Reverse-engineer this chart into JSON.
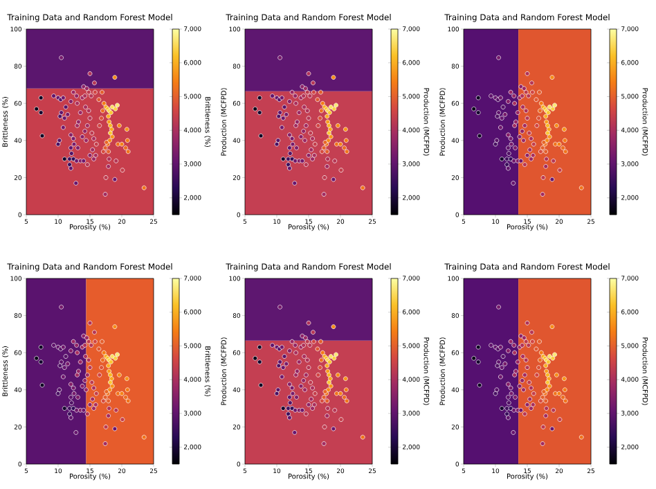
{
  "chart_data": [
    {
      "type": "scatter",
      "title": "Training Data and Random Forest Model",
      "xlabel": "Porosity (%)",
      "ylabel": "Brittleness (%)",
      "clabel": "Brittleness (%)",
      "marker": "circle",
      "xlim": [
        5,
        25
      ],
      "ylim": [
        0,
        100
      ],
      "xticks": [
        5,
        10,
        15,
        20,
        25
      ],
      "yticks": [
        0,
        20,
        40,
        60,
        80,
        100
      ],
      "clim": [
        1500,
        7000
      ],
      "cticks": [
        {
          "value": 2000,
          "label": "2,000"
        },
        {
          "value": 3000,
          "label": "3,000"
        },
        {
          "value": 4000,
          "label": "4,000"
        },
        {
          "value": 5000,
          "label": "5,000"
        },
        {
          "value": 6000,
          "label": "6,000"
        },
        {
          "value": 7000,
          "label": "7,000"
        }
      ],
      "bands": [
        {
          "axis": "y",
          "from": 0,
          "to": 68,
          "color": "#c73e4c"
        },
        {
          "axis": "y",
          "from": 68,
          "to": 100,
          "color": "#5b166e"
        }
      ],
      "x": [
        10.5,
        15.0,
        18.9,
        15.7,
        14.0,
        14.5,
        6.6,
        7.3,
        7.3,
        7.5,
        9.3,
        10.0,
        10.4,
        10.8,
        10.5,
        10.3,
        11.0,
        11.5,
        11.2,
        10.8,
        10.2,
        10.0,
        11.0,
        12.0,
        12.1,
        11.8,
        11.8,
        12.0,
        12.4,
        12.9,
        12.8,
        12.5,
        13.1,
        13.5,
        14.0,
        12.0,
        12.4,
        13.0,
        13.2,
        13.5,
        12.0,
        12.4,
        12.9,
        13.0,
        13.8,
        14.2,
        14.8,
        15.2,
        14.3,
        14.8,
        15.0,
        14.6,
        14.2,
        13.8,
        14.4,
        15.3,
        15.6,
        16.0,
        15.4,
        15.0,
        15.6,
        15.9,
        14.6,
        16.5,
        16.8,
        17.0,
        17.2,
        17.5,
        17.8,
        18.0,
        18.3,
        18.5,
        19.0,
        19.3,
        17.9,
        18.0,
        18.2,
        18.4,
        18.2,
        18.5,
        18.1,
        17.8,
        17.4,
        17.1,
        17.6,
        16.4,
        16.9,
        15.8,
        19.6,
        19.4,
        20.0,
        20.8,
        20.9,
        21.0,
        20.6,
        20.1,
        19.1,
        18.0,
        17.9,
        17.5,
        18.9,
        17.4,
        23.5,
        17.9
      ],
      "values": [
        84.6,
        76,
        74,
        71,
        69,
        68,
        57,
        63,
        55,
        42.5,
        64,
        63,
        62,
        63,
        55,
        53,
        52,
        54,
        58,
        47,
        40,
        38,
        30,
        36,
        33,
        30,
        27,
        25,
        30,
        29,
        17,
        38,
        36,
        29,
        29,
        43,
        41,
        48,
        50,
        55,
        61,
        66,
        64,
        60,
        63,
        64,
        66,
        64,
        58,
        56,
        52,
        48,
        45,
        42,
        40,
        44,
        41,
        38,
        35,
        32,
        30,
        32,
        27,
        48,
        52,
        56,
        60,
        58,
        57,
        56,
        55,
        58,
        57,
        59,
        53,
        50,
        48,
        46,
        44,
        42,
        40,
        38,
        36,
        34,
        39,
        62,
        66,
        66,
        48,
        38,
        38,
        46,
        40,
        34,
        36,
        24,
        29,
        30,
        26,
        20,
        19,
        11,
        14.5,
        34
      ],
      "cvalues": [
        3300,
        4100,
        5600,
        4200,
        3600,
        3800,
        1700,
        1800,
        1900,
        1800,
        3000,
        3100,
        2900,
        3200,
        3000,
        2800,
        3100,
        3300,
        2900,
        3200,
        2900,
        2700,
        1900,
        3000,
        2800,
        2600,
        2500,
        3000,
        2400,
        3200,
        3100,
        3300,
        3400,
        3500,
        3200,
        3500,
        3300,
        3900,
        3700,
        3800,
        3500,
        3800,
        3700,
        4000,
        3900,
        4100,
        4300,
        4200,
        4000,
        4100,
        4200,
        3900,
        3700,
        3500,
        3800,
        4300,
        4000,
        4400,
        3900,
        3600,
        3800,
        4000,
        4200,
        4600,
        4800,
        5200,
        5400,
        6000,
        6200,
        6500,
        6300,
        6600,
        6400,
        6700,
        6000,
        5800,
        6100,
        5900,
        6300,
        5700,
        5600,
        5300,
        5000,
        4700,
        5100,
        4900,
        5000,
        4600,
        5600,
        5300,
        5500,
        5700,
        5400,
        5300,
        5200,
        4400,
        4200,
        4100,
        3900,
        4300,
        3100,
        3900,
        5300,
        5000
      ]
    },
    {
      "type": "scatter",
      "title": "Training Data and Random Forest Model",
      "xlabel": "Porosity (%)",
      "ylabel": "Production (MCFPD)",
      "clabel": "Production (MCFPD)",
      "marker": "circle",
      "xlim": [
        5,
        25
      ],
      "ylim": [
        0,
        100
      ],
      "xticks": [
        5,
        10,
        15,
        20,
        25
      ],
      "yticks": [
        0,
        20,
        40,
        60,
        80,
        100
      ],
      "clim": [
        1500,
        7000
      ],
      "cticks": [
        {
          "value": 2000,
          "label": "2,000"
        },
        {
          "value": 3000,
          "label": "3,000"
        },
        {
          "value": 4000,
          "label": "4,000"
        },
        {
          "value": 5000,
          "label": "5,000"
        },
        {
          "value": 6000,
          "label": "6,000"
        },
        {
          "value": 7000,
          "label": "7,000"
        }
      ],
      "bands": [
        {
          "axis": "y",
          "from": 0,
          "to": 66.5,
          "color": "#c43f52"
        },
        {
          "axis": "y",
          "from": 66.5,
          "to": 100,
          "color": "#5e1770"
        }
      ],
      "x": [
        10.5,
        15.0,
        18.9,
        15.7,
        14.0,
        14.5,
        6.6,
        7.3,
        7.3,
        7.5,
        9.3,
        10.0,
        10.4,
        10.8,
        10.5,
        10.3,
        11.0,
        11.5,
        11.2,
        10.8,
        10.2,
        10.0,
        11.0,
        12.0,
        12.1,
        11.8,
        11.8,
        12.0,
        12.4,
        12.9,
        12.8,
        12.5,
        13.1,
        13.5,
        14.0,
        12.0,
        12.4,
        13.0,
        13.2,
        13.5,
        12.0,
        12.4,
        12.9,
        13.0,
        13.8,
        14.2,
        14.8,
        15.2,
        14.3,
        14.8,
        15.0,
        14.6,
        14.2,
        13.8,
        14.4,
        15.3,
        15.6,
        16.0,
        15.4,
        15.0,
        15.6,
        15.9,
        14.6,
        16.5,
        16.8,
        17.0,
        17.2,
        17.5,
        17.8,
        18.0,
        18.3,
        18.5,
        19.0,
        19.3,
        17.9,
        18.0,
        18.2,
        18.4,
        18.2,
        18.5,
        18.1,
        17.8,
        17.4,
        17.1,
        17.6,
        16.4,
        16.9,
        15.8,
        19.6,
        19.4,
        20.0,
        20.8,
        20.9,
        21.0,
        20.6,
        20.1,
        19.1,
        18.0,
        17.9,
        17.5,
        18.9,
        17.4,
        23.5,
        17.9
      ],
      "values": [
        84.6,
        76,
        74,
        71,
        69,
        68,
        57,
        63,
        55,
        42.5,
        64,
        63,
        62,
        63,
        55,
        53,
        52,
        54,
        58,
        47,
        40,
        38,
        30,
        36,
        33,
        30,
        27,
        25,
        30,
        29,
        17,
        38,
        36,
        29,
        29,
        43,
        41,
        48,
        50,
        55,
        61,
        66,
        64,
        60,
        63,
        64,
        66,
        64,
        58,
        56,
        52,
        48,
        45,
        42,
        40,
        44,
        41,
        38,
        35,
        32,
        30,
        32,
        27,
        48,
        52,
        56,
        60,
        58,
        57,
        56,
        55,
        58,
        57,
        59,
        53,
        50,
        48,
        46,
        44,
        42,
        40,
        38,
        36,
        34,
        39,
        62,
        66,
        66,
        48,
        38,
        38,
        46,
        40,
        34,
        36,
        24,
        29,
        30,
        26,
        20,
        19,
        11,
        14.5,
        34
      ],
      "cvalues": [
        3300,
        4100,
        5600,
        4200,
        3600,
        3800,
        1700,
        1800,
        1900,
        1800,
        3000,
        3100,
        2900,
        3200,
        3000,
        2800,
        3100,
        3300,
        2900,
        3200,
        2900,
        2700,
        1900,
        3000,
        2800,
        2600,
        2500,
        3000,
        2400,
        3200,
        3100,
        3300,
        3400,
        3500,
        3200,
        3500,
        3300,
        3900,
        3700,
        3800,
        3500,
        3800,
        3700,
        4000,
        3900,
        4100,
        4300,
        4200,
        4000,
        4100,
        4200,
        3900,
        3700,
        3500,
        3800,
        4300,
        4000,
        4400,
        3900,
        3600,
        3800,
        4000,
        4200,
        4600,
        4800,
        5200,
        5400,
        6000,
        6200,
        6500,
        6300,
        6600,
        6400,
        6700,
        6000,
        5800,
        6100,
        5900,
        6300,
        5700,
        5600,
        5300,
        5000,
        4700,
        5100,
        4900,
        5000,
        4600,
        5600,
        5300,
        5500,
        5700,
        5400,
        5300,
        5200,
        4400,
        4200,
        4100,
        3900,
        4300,
        3100,
        3900,
        5300,
        5000
      ]
    },
    {
      "type": "scatter",
      "title": "Training Data and Random Forest Model",
      "xlabel": "Porosity (%)",
      "ylabel": "Production (MCFPD)",
      "clabel": "Production (MCFPD)",
      "marker": "circle",
      "xlim": [
        5,
        25
      ],
      "ylim": [
        0,
        100
      ],
      "xticks": [
        5,
        10,
        15,
        20,
        25
      ],
      "yticks": [
        0,
        20,
        40,
        60,
        80,
        100
      ],
      "clim": [
        1500,
        7000
      ],
      "cticks": [
        {
          "value": 2000,
          "label": "2,000"
        },
        {
          "value": 3000,
          "label": "3,000"
        },
        {
          "value": 4000,
          "label": "4,000"
        },
        {
          "value": 5000,
          "label": "5,000"
        },
        {
          "value": 6000,
          "label": "6,000"
        },
        {
          "value": 7000,
          "label": "7,000"
        }
      ],
      "bands": [
        {
          "axis": "x",
          "from": 5,
          "to": 13.6,
          "color": "#551070"
        },
        {
          "axis": "x",
          "from": 13.6,
          "to": 25,
          "color": "#e0562f"
        }
      ],
      "x": [
        10.5,
        15.0,
        18.9,
        15.7,
        14.0,
        14.5,
        6.6,
        7.3,
        7.3,
        7.5,
        9.3,
        10.0,
        10.4,
        10.8,
        10.5,
        10.3,
        11.0,
        11.5,
        11.2,
        10.8,
        10.2,
        10.0,
        11.0,
        12.0,
        12.1,
        11.8,
        11.8,
        12.0,
        12.4,
        12.9,
        12.8,
        12.5,
        13.1,
        13.5,
        14.0,
        12.0,
        12.4,
        13.0,
        13.2,
        13.5,
        12.0,
        12.4,
        12.9,
        13.0,
        13.8,
        14.2,
        14.8,
        15.2,
        14.3,
        14.8,
        15.0,
        14.6,
        14.2,
        13.8,
        14.4,
        15.3,
        15.6,
        16.0,
        15.4,
        15.0,
        15.6,
        15.9,
        14.6,
        16.5,
        16.8,
        17.0,
        17.2,
        17.5,
        17.8,
        18.0,
        18.3,
        18.5,
        19.0,
        19.3,
        17.9,
        18.0,
        18.2,
        18.4,
        18.2,
        18.5,
        18.1,
        17.8,
        17.4,
        17.1,
        17.6,
        16.4,
        16.9,
        15.8,
        19.6,
        19.4,
        20.0,
        20.8,
        20.9,
        21.0,
        20.6,
        20.1,
        19.1,
        18.0,
        17.9,
        17.5,
        18.9,
        17.4,
        23.5,
        17.9
      ],
      "values": [
        84.6,
        76,
        74,
        71,
        69,
        68,
        57,
        63,
        55,
        42.5,
        64,
        63,
        62,
        63,
        55,
        53,
        52,
        54,
        58,
        47,
        40,
        38,
        30,
        36,
        33,
        30,
        27,
        25,
        30,
        29,
        17,
        38,
        36,
        29,
        29,
        43,
        41,
        48,
        50,
        55,
        61,
        66,
        64,
        60,
        63,
        64,
        66,
        64,
        58,
        56,
        52,
        48,
        45,
        42,
        40,
        44,
        41,
        38,
        35,
        32,
        30,
        32,
        27,
        48,
        52,
        56,
        60,
        58,
        57,
        56,
        55,
        58,
        57,
        59,
        53,
        50,
        48,
        46,
        44,
        42,
        40,
        38,
        36,
        34,
        39,
        62,
        66,
        66,
        48,
        38,
        38,
        46,
        40,
        34,
        36,
        24,
        29,
        30,
        26,
        20,
        19,
        11,
        14.5,
        34
      ],
      "cvalues": [
        3300,
        4100,
        5600,
        4200,
        3600,
        3800,
        1700,
        1800,
        1900,
        1800,
        3000,
        3100,
        2900,
        3200,
        3000,
        2800,
        3100,
        3300,
        2900,
        3200,
        2900,
        2700,
        1900,
        3000,
        2800,
        2600,
        2500,
        3000,
        2400,
        3200,
        3100,
        3300,
        3400,
        3500,
        3200,
        3500,
        3300,
        3900,
        3700,
        3800,
        3500,
        3800,
        3700,
        4000,
        3900,
        4100,
        4300,
        4200,
        4000,
        4100,
        4200,
        3900,
        3700,
        3500,
        3800,
        4300,
        4000,
        4400,
        3900,
        3600,
        3800,
        4000,
        4200,
        4600,
        4800,
        5200,
        5400,
        6000,
        6200,
        6500,
        6300,
        6600,
        6400,
        6700,
        6000,
        5800,
        6100,
        5900,
        6300,
        5700,
        5600,
        5300,
        5000,
        4700,
        5100,
        4900,
        5000,
        4600,
        5600,
        5300,
        5500,
        5700,
        5400,
        5300,
        5200,
        4400,
        4200,
        4100,
        3900,
        4300,
        3100,
        3900,
        5300,
        5000
      ]
    },
    {
      "type": "scatter",
      "title": "Training Data and Random Forest Model",
      "xlabel": "Porosity (%)",
      "ylabel": "Brittleness (%)",
      "clabel": "Brittleness (%)",
      "marker": "circle",
      "xlim": [
        5,
        25
      ],
      "ylim": [
        0,
        100
      ],
      "xticks": [
        5,
        10,
        15,
        20,
        25
      ],
      "yticks": [
        0,
        20,
        40,
        60,
        80,
        100
      ],
      "clim": [
        1500,
        7000
      ],
      "cticks": [
        {
          "value": 2000,
          "label": "2,000"
        },
        {
          "value": 3000,
          "label": "3,000"
        },
        {
          "value": 4000,
          "label": "4,000"
        },
        {
          "value": 5000,
          "label": "5,000"
        },
        {
          "value": 6000,
          "label": "6,000"
        },
        {
          "value": 7000,
          "label": "7,000"
        }
      ],
      "bands": [
        {
          "axis": "x",
          "from": 5,
          "to": 14.4,
          "color": "#5a136e"
        },
        {
          "axis": "x",
          "from": 14.4,
          "to": 25,
          "color": "#e65c2c"
        }
      ],
      "x": [
        10.5,
        15.0,
        18.9,
        15.7,
        14.0,
        14.5,
        6.6,
        7.3,
        7.3,
        7.5,
        9.3,
        10.0,
        10.4,
        10.8,
        10.5,
        10.3,
        11.0,
        11.5,
        11.2,
        10.8,
        10.2,
        10.0,
        11.0,
        12.0,
        12.1,
        11.8,
        11.8,
        12.0,
        12.4,
        12.9,
        12.8,
        12.5,
        13.1,
        13.5,
        14.0,
        12.0,
        12.4,
        13.0,
        13.2,
        13.5,
        12.0,
        12.4,
        12.9,
        13.0,
        13.8,
        14.2,
        14.8,
        15.2,
        14.3,
        14.8,
        15.0,
        14.6,
        14.2,
        13.8,
        14.4,
        15.3,
        15.6,
        16.0,
        15.4,
        15.0,
        15.6,
        15.9,
        14.6,
        16.5,
        16.8,
        17.0,
        17.2,
        17.5,
        17.8,
        18.0,
        18.3,
        18.5,
        19.0,
        19.3,
        17.9,
        18.0,
        18.2,
        18.4,
        18.2,
        18.5,
        18.1,
        17.8,
        17.4,
        17.1,
        17.6,
        16.4,
        16.9,
        15.8,
        19.6,
        19.4,
        20.0,
        20.8,
        20.9,
        21.0,
        20.6,
        20.1,
        19.1,
        18.0,
        17.9,
        17.5,
        18.9,
        17.4,
        23.5,
        17.9
      ],
      "values": [
        84.6,
        76,
        74,
        71,
        69,
        68,
        57,
        63,
        55,
        42.5,
        64,
        63,
        62,
        63,
        55,
        53,
        52,
        54,
        58,
        47,
        40,
        38,
        30,
        36,
        33,
        30,
        27,
        25,
        30,
        29,
        17,
        38,
        36,
        29,
        29,
        43,
        41,
        48,
        50,
        55,
        61,
        66,
        64,
        60,
        63,
        64,
        66,
        64,
        58,
        56,
        52,
        48,
        45,
        42,
        40,
        44,
        41,
        38,
        35,
        32,
        30,
        32,
        27,
        48,
        52,
        56,
        60,
        58,
        57,
        56,
        55,
        58,
        57,
        59,
        53,
        50,
        48,
        46,
        44,
        42,
        40,
        38,
        36,
        34,
        39,
        62,
        66,
        66,
        48,
        38,
        38,
        46,
        40,
        34,
        36,
        24,
        29,
        30,
        26,
        20,
        19,
        11,
        14.5,
        34
      ],
      "cvalues": [
        3300,
        4100,
        5600,
        4200,
        3600,
        3800,
        1700,
        1800,
        1900,
        1800,
        3000,
        3100,
        2900,
        3200,
        3000,
        2800,
        3100,
        3300,
        2900,
        3200,
        2900,
        2700,
        1900,
        3000,
        2800,
        2600,
        2500,
        3000,
        2400,
        3200,
        3100,
        3300,
        3400,
        3500,
        3200,
        3500,
        3300,
        3900,
        3700,
        3800,
        3500,
        3800,
        3700,
        4000,
        3900,
        4100,
        4300,
        4200,
        4000,
        4100,
        4200,
        3900,
        3700,
        3500,
        3800,
        4300,
        4000,
        4400,
        3900,
        3600,
        3800,
        4000,
        4200,
        4600,
        4800,
        5200,
        5400,
        6000,
        6200,
        6500,
        6300,
        6600,
        6400,
        6700,
        6000,
        5800,
        6100,
        5900,
        6300,
        5700,
        5600,
        5300,
        5000,
        4700,
        5100,
        4900,
        5000,
        4600,
        5600,
        5300,
        5500,
        5700,
        5400,
        5300,
        5200,
        4400,
        4200,
        4100,
        3900,
        4300,
        3100,
        3900,
        5300,
        5000
      ]
    },
    {
      "type": "scatter",
      "title": "Training Data and Random Forest Model",
      "xlabel": "Porosity (%)",
      "ylabel": "Production (MCFPD)",
      "clabel": "Production (MCFPD)",
      "marker": "circle",
      "xlim": [
        5,
        25
      ],
      "ylim": [
        0,
        100
      ],
      "xticks": [
        5,
        10,
        15,
        20,
        25
      ],
      "yticks": [
        0,
        20,
        40,
        60,
        80,
        100
      ],
      "clim": [
        1500,
        7000
      ],
      "cticks": [
        {
          "value": 2000,
          "label": "2,000"
        },
        {
          "value": 3000,
          "label": "3,000"
        },
        {
          "value": 4000,
          "label": "4,000"
        },
        {
          "value": 5000,
          "label": "5,000"
        },
        {
          "value": 6000,
          "label": "6,000"
        },
        {
          "value": 7000,
          "label": "7,000"
        }
      ],
      "bands": [
        {
          "axis": "y",
          "from": 0,
          "to": 66.5,
          "color": "#c43f52"
        },
        {
          "axis": "y",
          "from": 66.5,
          "to": 100,
          "color": "#5e1770"
        }
      ],
      "x": [
        10.5,
        15.0,
        18.9,
        15.7,
        14.0,
        14.5,
        6.6,
        7.3,
        7.3,
        7.5,
        9.3,
        10.0,
        10.4,
        10.8,
        10.5,
        10.3,
        11.0,
        11.5,
        11.2,
        10.8,
        10.2,
        10.0,
        11.0,
        12.0,
        12.1,
        11.8,
        11.8,
        12.0,
        12.4,
        12.9,
        12.8,
        12.5,
        13.1,
        13.5,
        14.0,
        12.0,
        12.4,
        13.0,
        13.2,
        13.5,
        12.0,
        12.4,
        12.9,
        13.0,
        13.8,
        14.2,
        14.8,
        15.2,
        14.3,
        14.8,
        15.0,
        14.6,
        14.2,
        13.8,
        14.4,
        15.3,
        15.6,
        16.0,
        15.4,
        15.0,
        15.6,
        15.9,
        14.6,
        16.5,
        16.8,
        17.0,
        17.2,
        17.5,
        17.8,
        18.0,
        18.3,
        18.5,
        19.0,
        19.3,
        17.9,
        18.0,
        18.2,
        18.4,
        18.2,
        18.5,
        18.1,
        17.8,
        17.4,
        17.1,
        17.6,
        16.4,
        16.9,
        15.8,
        19.6,
        19.4,
        20.0,
        20.8,
        20.9,
        21.0,
        20.6,
        20.1,
        19.1,
        18.0,
        17.9,
        17.5,
        18.9,
        17.4,
        23.5,
        17.9
      ],
      "values": [
        84.6,
        76,
        74,
        71,
        69,
        68,
        57,
        63,
        55,
        42.5,
        64,
        63,
        62,
        63,
        55,
        53,
        52,
        54,
        58,
        47,
        40,
        38,
        30,
        36,
        33,
        30,
        27,
        25,
        30,
        29,
        17,
        38,
        36,
        29,
        29,
        43,
        41,
        48,
        50,
        55,
        61,
        66,
        64,
        60,
        63,
        64,
        66,
        64,
        58,
        56,
        52,
        48,
        45,
        42,
        40,
        44,
        41,
        38,
        35,
        32,
        30,
        32,
        27,
        48,
        52,
        56,
        60,
        58,
        57,
        56,
        55,
        58,
        57,
        59,
        53,
        50,
        48,
        46,
        44,
        42,
        40,
        38,
        36,
        34,
        39,
        62,
        66,
        66,
        48,
        38,
        38,
        46,
        40,
        34,
        36,
        24,
        29,
        30,
        26,
        20,
        19,
        11,
        14.5,
        34
      ],
      "cvalues": [
        3300,
        4100,
        5600,
        4200,
        3600,
        3800,
        1700,
        1800,
        1900,
        1800,
        3000,
        3100,
        2900,
        3200,
        3000,
        2800,
        3100,
        3300,
        2900,
        3200,
        2900,
        2700,
        1900,
        3000,
        2800,
        2600,
        2500,
        3000,
        2400,
        3200,
        3100,
        3300,
        3400,
        3500,
        3200,
        3500,
        3300,
        3900,
        3700,
        3800,
        3500,
        3800,
        3700,
        4000,
        3900,
        4100,
        4300,
        4200,
        4000,
        4100,
        4200,
        3900,
        3700,
        3500,
        3800,
        4300,
        4000,
        4400,
        3900,
        3600,
        3800,
        4000,
        4200,
        4600,
        4800,
        5200,
        5400,
        6000,
        6200,
        6500,
        6300,
        6600,
        6400,
        6700,
        6000,
        5800,
        6100,
        5900,
        6300,
        5700,
        5600,
        5300,
        5000,
        4700,
        5100,
        4900,
        5000,
        4600,
        5600,
        5300,
        5500,
        5700,
        5400,
        5300,
        5200,
        4400,
        4200,
        4100,
        3900,
        4300,
        3100,
        3900,
        5300,
        5000
      ]
    },
    {
      "type": "scatter",
      "title": "Training Data and Random Forest Model",
      "xlabel": "Porosity (%)",
      "ylabel": "Production (MCFPD)",
      "clabel": "Production (MCFPD)",
      "marker": "circle",
      "xlim": [
        5,
        25
      ],
      "ylim": [
        0,
        100
      ],
      "xticks": [
        5,
        10,
        15,
        20,
        25
      ],
      "yticks": [
        0,
        20,
        40,
        60,
        80,
        100
      ],
      "clim": [
        1500,
        7000
      ],
      "cticks": [
        {
          "value": 2000,
          "label": "2,000"
        },
        {
          "value": 3000,
          "label": "3,000"
        },
        {
          "value": 4000,
          "label": "4,000"
        },
        {
          "value": 5000,
          "label": "5,000"
        },
        {
          "value": 6000,
          "label": "6,000"
        },
        {
          "value": 7000,
          "label": "7,000"
        }
      ],
      "bands": [
        {
          "axis": "x",
          "from": 5,
          "to": 13.6,
          "color": "#551070"
        },
        {
          "axis": "x",
          "from": 13.6,
          "to": 25,
          "color": "#e0562f"
        }
      ],
      "x": [
        10.5,
        15.0,
        18.9,
        15.7,
        14.0,
        14.5,
        6.6,
        7.3,
        7.3,
        7.5,
        9.3,
        10.0,
        10.4,
        10.8,
        10.5,
        10.3,
        11.0,
        11.5,
        11.2,
        10.8,
        10.2,
        10.0,
        11.0,
        12.0,
        12.1,
        11.8,
        11.8,
        12.0,
        12.4,
        12.9,
        12.8,
        12.5,
        13.1,
        13.5,
        14.0,
        12.0,
        12.4,
        13.0,
        13.2,
        13.5,
        12.0,
        12.4,
        12.9,
        13.0,
        13.8,
        14.2,
        14.8,
        15.2,
        14.3,
        14.8,
        15.0,
        14.6,
        14.2,
        13.8,
        14.4,
        15.3,
        15.6,
        16.0,
        15.4,
        15.0,
        15.6,
        15.9,
        14.6,
        16.5,
        16.8,
        17.0,
        17.2,
        17.5,
        17.8,
        18.0,
        18.3,
        18.5,
        19.0,
        19.3,
        17.9,
        18.0,
        18.2,
        18.4,
        18.2,
        18.5,
        18.1,
        17.8,
        17.4,
        17.1,
        17.6,
        16.4,
        16.9,
        15.8,
        19.6,
        19.4,
        20.0,
        20.8,
        20.9,
        21.0,
        20.6,
        20.1,
        19.1,
        18.0,
        17.9,
        17.5,
        18.9,
        17.4,
        23.5,
        17.9
      ],
      "values": [
        84.6,
        76,
        74,
        71,
        69,
        68,
        57,
        63,
        55,
        42.5,
        64,
        63,
        62,
        63,
        55,
        53,
        52,
        54,
        58,
        47,
        40,
        38,
        30,
        36,
        33,
        30,
        27,
        25,
        30,
        29,
        17,
        38,
        36,
        29,
        29,
        43,
        41,
        48,
        50,
        55,
        61,
        66,
        64,
        60,
        63,
        64,
        66,
        64,
        58,
        56,
        52,
        48,
        45,
        42,
        40,
        44,
        41,
        38,
        35,
        32,
        30,
        32,
        27,
        48,
        52,
        56,
        60,
        58,
        57,
        56,
        55,
        58,
        57,
        59,
        53,
        50,
        48,
        46,
        44,
        42,
        40,
        38,
        36,
        34,
        39,
        62,
        66,
        66,
        48,
        38,
        38,
        46,
        40,
        34,
        36,
        24,
        29,
        30,
        26,
        20,
        19,
        11,
        14.5,
        34
      ],
      "cvalues": [
        3300,
        4100,
        5600,
        4200,
        3600,
        3800,
        1700,
        1800,
        1900,
        1800,
        3000,
        3100,
        2900,
        3200,
        3000,
        2800,
        3100,
        3300,
        2900,
        3200,
        2900,
        2700,
        1900,
        3000,
        2800,
        2600,
        2500,
        3000,
        2400,
        3200,
        3100,
        3300,
        3400,
        3500,
        3200,
        3500,
        3300,
        3900,
        3700,
        3800,
        3500,
        3800,
        3700,
        4000,
        3900,
        4100,
        4300,
        4200,
        4000,
        4100,
        4200,
        3900,
        3700,
        3500,
        3800,
        4300,
        4000,
        4400,
        3900,
        3600,
        3800,
        4000,
        4200,
        4600,
        4800,
        5200,
        5400,
        6000,
        6200,
        6500,
        6300,
        6600,
        6400,
        6700,
        6000,
        5800,
        6100,
        5900,
        6300,
        5700,
        5600,
        5300,
        5000,
        4700,
        5100,
        4900,
        5000,
        4600,
        5600,
        5300,
        5500,
        5700,
        5400,
        5300,
        5200,
        4400,
        4200,
        4100,
        3900,
        4300,
        3100,
        3900,
        5300,
        5000
      ]
    }
  ]
}
